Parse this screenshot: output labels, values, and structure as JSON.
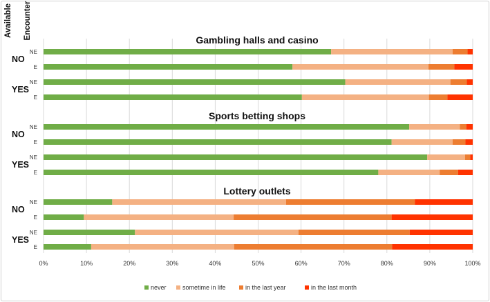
{
  "chart_data": {
    "type": "bar",
    "orientation": "horizontal",
    "stacked": true,
    "row_headers": [
      "Available",
      "Encounter"
    ],
    "x_ticks": [
      "0%",
      "10%",
      "20%",
      "30%",
      "40%",
      "50%",
      "60%",
      "70%",
      "80%",
      "90%",
      "100%"
    ],
    "xlim": [
      0,
      100
    ],
    "grid": true,
    "legend_position": "bottom",
    "series_names": [
      "never",
      "sometime in life",
      "in the last year",
      "in the last month"
    ],
    "colors": [
      "#70ad47",
      "#f4b183",
      "#ed7d31",
      "#ff3300"
    ],
    "sections": [
      {
        "title": "Gambling halls and casino",
        "groups": [
          {
            "label": "NO",
            "bars": [
              {
                "label": "NE",
                "values": [
                  67,
                  28.3,
                  3.5,
                  1.2
                ]
              },
              {
                "label": "E",
                "values": [
                  58,
                  31.7,
                  6,
                  4.3
                ]
              }
            ]
          },
          {
            "label": "YES",
            "bars": [
              {
                "label": "NE",
                "values": [
                  70.3,
                  24.5,
                  3.8,
                  1.4
                ]
              },
              {
                "label": "E",
                "values": [
                  60.2,
                  29.6,
                  4.3,
                  5.9
                ]
              }
            ]
          }
        ]
      },
      {
        "title": "Sports betting shops",
        "groups": [
          {
            "label": "NO",
            "bars": [
              {
                "label": "NE",
                "values": [
                  85.2,
                  11.8,
                  1.5,
                  1.5
                ]
              },
              {
                "label": "E",
                "values": [
                  81.1,
                  14.2,
                  3,
                  1.7
                ]
              }
            ]
          },
          {
            "label": "YES",
            "bars": [
              {
                "label": "NE",
                "values": [
                  89.4,
                  8.8,
                  1.2,
                  0.6
                ]
              },
              {
                "label": "E",
                "values": [
                  78,
                  14.3,
                  4.3,
                  3.4
                ]
              }
            ]
          }
        ]
      },
      {
        "title": "Lottery outlets",
        "groups": [
          {
            "label": "NO",
            "bars": [
              {
                "label": "NE",
                "values": [
                  16,
                  40.5,
                  30,
                  13.5
                ]
              },
              {
                "label": "E",
                "values": [
                  9.4,
                  34.9,
                  36.8,
                  18.9
                ]
              }
            ]
          },
          {
            "label": "YES",
            "bars": [
              {
                "label": "NE",
                "values": [
                  21.3,
                  38.1,
                  25.9,
                  14.7
                ]
              },
              {
                "label": "E",
                "values": [
                  11.1,
                  33.3,
                  36.8,
                  18.8
                ]
              }
            ]
          }
        ]
      }
    ]
  }
}
